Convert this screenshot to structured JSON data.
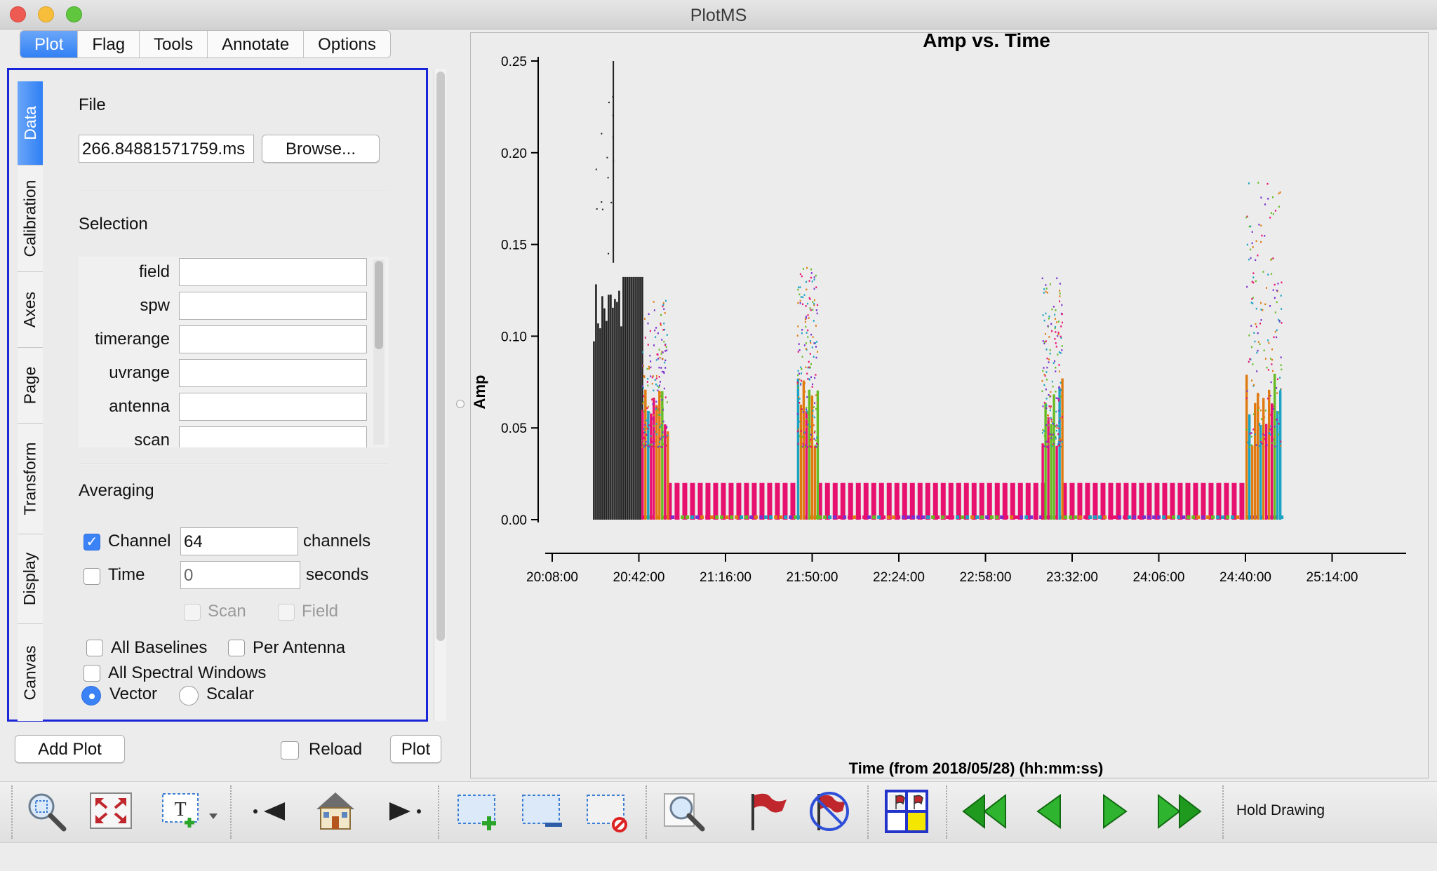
{
  "window": {
    "title": "PlotMS"
  },
  "tabs": [
    "Plot",
    "Flag",
    "Tools",
    "Annotate",
    "Options"
  ],
  "vertical_tabs": [
    "Data",
    "Calibration",
    "Axes",
    "Page",
    "Transform",
    "Display",
    "Canvas"
  ],
  "data_tab": {
    "file_label": "File",
    "file_value": "266.84881571759.ms",
    "browse_label": "Browse...",
    "selection_label": "Selection",
    "selection_fields": [
      "field",
      "spw",
      "timerange",
      "uvrange",
      "antenna",
      "scan"
    ],
    "averaging_label": "Averaging",
    "channel_label": "Channel",
    "channel_value": "64",
    "channel_unit": "channels",
    "time_label": "Time",
    "time_value": "0",
    "time_unit": "seconds",
    "scan_label": "Scan",
    "field_label": "Field",
    "all_baselines_label": "All Baselines",
    "per_antenna_label": "Per Antenna",
    "all_spw_label": "All Spectral Windows",
    "vector_label": "Vector",
    "scalar_label": "Scalar"
  },
  "bottom": {
    "add_plot_label": "Add Plot",
    "reload_label": "Reload",
    "plot_label": "Plot"
  },
  "toolbar": {
    "hold_drawing_label": "Hold Drawing",
    "icons": [
      "zoom-icon",
      "unzoom-icon",
      "annotate-text-icon",
      "step-back-icon",
      "home-icon",
      "step-forward-icon",
      "region-add-icon",
      "region-subtract-icon",
      "region-clear-icon",
      "locate-icon",
      "flag-icon",
      "unflag-icon",
      "flag-extend-icon",
      "first-iteration-icon",
      "previous-iteration-icon",
      "next-iteration-icon",
      "last-iteration-icon"
    ]
  },
  "chart_data": {
    "type": "scatter",
    "title": "Amp vs. Time",
    "xlabel": "Time (from 2018/05/28) (hh:mm:ss)",
    "ylabel": "Amp",
    "xticks": [
      "20:08:00",
      "20:42:00",
      "21:16:00",
      "21:50:00",
      "22:24:00",
      "22:58:00",
      "23:32:00",
      "24:06:00",
      "24:40:00",
      "25:14:00"
    ],
    "yticks": [
      "0.00",
      "0.05",
      "0.10",
      "0.15",
      "0.20",
      "0.25"
    ],
    "ylim": [
      0,
      0.25
    ],
    "colors": [
      "#e8106f",
      "#66bb22",
      "#e07a10",
      "#1aa3c2",
      "#7a2fd0"
    ],
    "calibrator_band": {
      "color": "#222222",
      "time_start": "20:24:00",
      "time_end": "20:43:00",
      "amp_peak": 0.25,
      "amp_body": 0.135
    },
    "target_scans": [
      {
        "time_start": "20:43:00",
        "time_end": "20:53:00",
        "amp_peak": 0.12
      },
      {
        "time_start": "21:44:00",
        "time_end": "21:52:00",
        "amp_peak": 0.14
      },
      {
        "time_start": "23:20:00",
        "time_end": "23:28:00",
        "amp_peak": 0.135
      },
      {
        "time_start": "24:40:00",
        "time_end": "24:54:00",
        "amp_peak": 0.185
      }
    ],
    "baseline_amp": 0.02
  }
}
